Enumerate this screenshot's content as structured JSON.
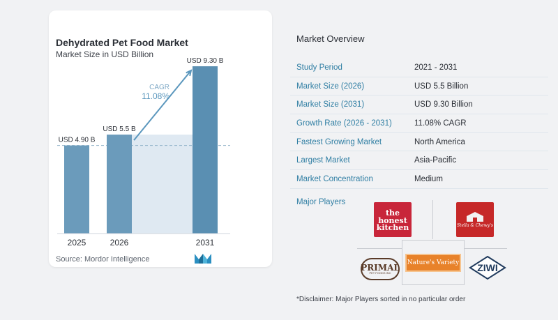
{
  "chart_data": {
    "type": "bar",
    "title": "Dehydrated Pet Food Market",
    "subtitle": "Market Size in USD Billion",
    "categories": [
      "2025",
      "2026",
      "2031"
    ],
    "values": [
      4.9,
      5.5,
      9.3
    ],
    "value_labels": [
      "USD 4.90 B",
      "USD 5.5 B",
      "USD 9.30 B"
    ],
    "cagr_label": "CAGR",
    "cagr_value": "11.08%",
    "ylim": [
      0,
      10
    ],
    "bar_color": "#6b9bbb",
    "bar_highlight_color": "#5a8fb2",
    "shade_color": "#dfe9f2",
    "arrow_color": "#5b97bd"
  },
  "source": "Source: Mordor Intelligence",
  "overview": {
    "title": "Market Overview",
    "rows": [
      {
        "label": "Study Period",
        "value": "2021 - 2031"
      },
      {
        "label": "Market Size (2026)",
        "value": "USD 5.5 Billion"
      },
      {
        "label": "Market Size (2031)",
        "value": "USD 9.30 Billion"
      },
      {
        "label": "Growth Rate (2026 - 2031)",
        "value": "11.08% CAGR"
      },
      {
        "label": "Fastest Growing Market",
        "value": "North America"
      },
      {
        "label": "Largest Market",
        "value": "Asia-Pacific"
      },
      {
        "label": "Market Concentration",
        "value": "Medium"
      }
    ]
  },
  "players": {
    "title": "Major Players",
    "logos": {
      "honest_kitchen": [
        "the",
        "honest",
        "kitchen"
      ],
      "stella": "Stella & Chewy's",
      "primal": "PRIMAL",
      "primal_sub": "PET FOODS INC",
      "natures_variety": "Nature's Variety",
      "ziwi": "ZIWI"
    }
  },
  "disclaimer": "*Disclaimer: Major Players sorted in no particular order",
  "colors": {
    "accent": "#2f7ea3",
    "honest_red": "#c8263a",
    "stella_red": "#c62828",
    "nv_orange": "#e8822a",
    "ziwi_navy": "#1f3a5c",
    "primal_brown": "#5a3b28"
  }
}
